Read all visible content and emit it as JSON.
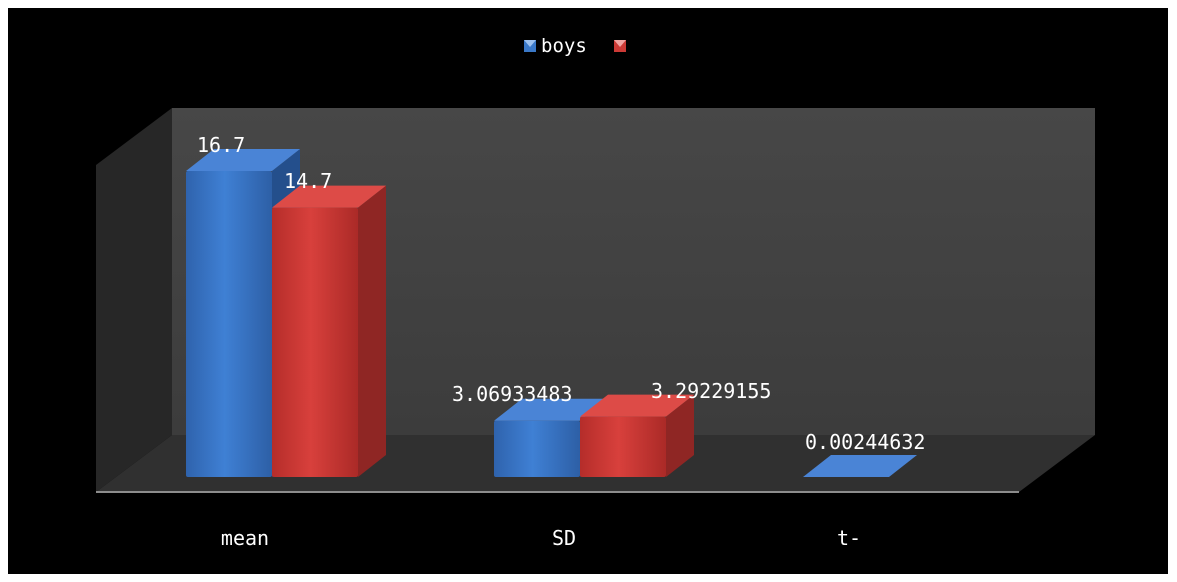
{
  "chart_data": {
    "type": "bar",
    "title": "",
    "xlabel": "",
    "ylabel": "",
    "categories": [
      "mean",
      "SD",
      "t-"
    ],
    "series": [
      {
        "name": "boys",
        "values": [
          16.7,
          3.06933483,
          0.00244632
        ],
        "color": "#3a78c8"
      },
      {
        "name": "",
        "values": [
          14.7,
          3.29229155,
          null
        ],
        "color": "#cc3a36"
      }
    ],
    "data_labels": [
      [
        "16.7",
        "3.06933483",
        "0.00244632"
      ],
      [
        "14.7",
        "3.29229155",
        ""
      ]
    ],
    "legend": {
      "position": "top",
      "entries": [
        "boys",
        ""
      ]
    },
    "three_d": true,
    "grid": false,
    "background": "#000000"
  }
}
